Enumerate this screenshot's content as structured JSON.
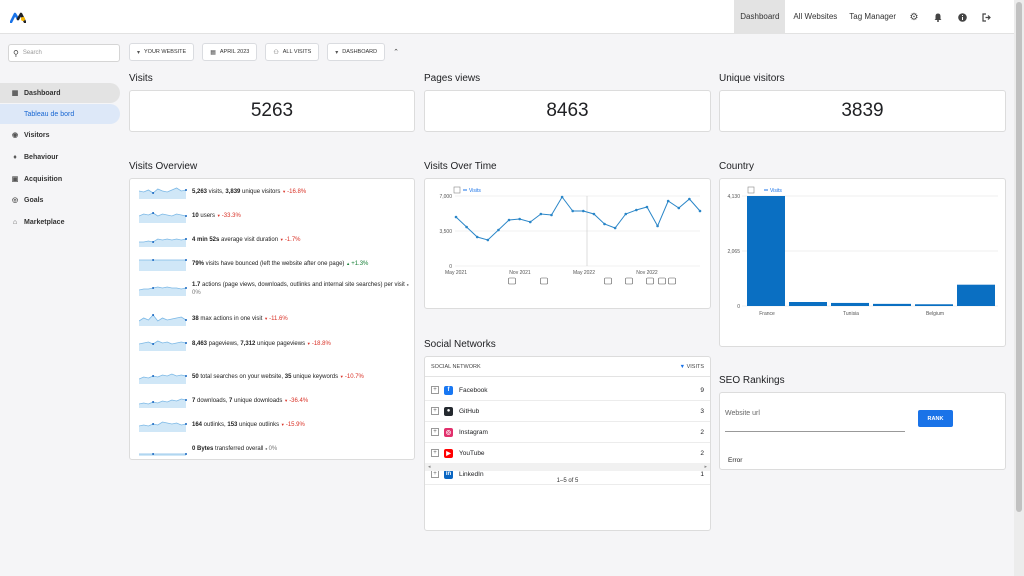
{
  "topbar": {
    "nav": [
      "Dashboard",
      "All Websites",
      "Tag Manager"
    ],
    "icons": [
      "gear-icon",
      "bell-icon",
      "info-icon",
      "logout-icon"
    ]
  },
  "sidebar": {
    "search_placeholder": "Search",
    "items": [
      {
        "label": "Dashboard",
        "icon": "grid-icon"
      },
      {
        "label": "Tableau de bord",
        "icon": ""
      },
      {
        "label": "Visitors",
        "icon": "eye-icon"
      },
      {
        "label": "Behaviour",
        "icon": "bell-icon"
      },
      {
        "label": "Acquisition",
        "icon": "window-icon"
      },
      {
        "label": "Goals",
        "icon": "target-icon"
      },
      {
        "label": "Marketplace",
        "icon": "store-icon"
      }
    ]
  },
  "filters": [
    "YOUR WEBSITE",
    "APRIL 2023",
    "ALL VISITS",
    "DASHBOARD"
  ],
  "kpis": [
    {
      "title": "Visits",
      "value": "5263"
    },
    {
      "title": "Pages views",
      "value": "8463"
    },
    {
      "title": "Unique visitors",
      "value": "3839"
    }
  ],
  "overview": {
    "title": "Visits Overview",
    "rows": [
      {
        "segments": [
          {
            "t": "5,263",
            "b": true
          },
          {
            "t": " visits, "
          },
          {
            "t": "3,839",
            "b": true
          },
          {
            "t": " unique visitors "
          }
        ],
        "delta": "-16.8%",
        "dir": "dn"
      },
      {
        "segments": [
          {
            "t": "10",
            "b": true
          },
          {
            "t": " users "
          }
        ],
        "delta": "-33.3%",
        "dir": "dn"
      },
      {
        "segments": [
          {
            "t": "4 min 52s",
            "b": true
          },
          {
            "t": " average visit duration "
          }
        ],
        "delta": "-1.7%",
        "dir": "dn"
      },
      {
        "segments": [
          {
            "t": "79%",
            "b": true
          },
          {
            "t": " visits have bounced (left the website after one page) "
          }
        ],
        "delta": "+1.3%",
        "dir": "up"
      },
      {
        "segments": [
          {
            "t": "1.7",
            "b": true
          },
          {
            "t": " actions (page views, downloads, outlinks and internal site searches) per visit "
          }
        ],
        "delta": "0%",
        "dir": "neu"
      },
      {
        "segments": [
          {
            "t": "38",
            "b": true
          },
          {
            "t": " max actions in one visit "
          }
        ],
        "delta": "-11.6%",
        "dir": "dn"
      },
      {
        "segments": [
          {
            "t": "8,463",
            "b": true
          },
          {
            "t": " pageviews, "
          },
          {
            "t": "7,312",
            "b": true
          },
          {
            "t": " unique pageviews "
          }
        ],
        "delta": "-18.8%",
        "dir": "dn"
      },
      {
        "segments": [
          {
            "t": "50",
            "b": true
          },
          {
            "t": " total searches on your website, "
          },
          {
            "t": "35",
            "b": true
          },
          {
            "t": " unique keywords "
          }
        ],
        "delta": "-10.7%",
        "dir": "dn"
      },
      {
        "segments": [
          {
            "t": "7",
            "b": true
          },
          {
            "t": " downloads, "
          },
          {
            "t": "7",
            "b": true
          },
          {
            "t": " unique downloads "
          }
        ],
        "delta": "-36.4%",
        "dir": "dn"
      },
      {
        "segments": [
          {
            "t": "164",
            "b": true
          },
          {
            "t": " outlinks, "
          },
          {
            "t": "153",
            "b": true
          },
          {
            "t": " unique outlinks "
          }
        ],
        "delta": "-15.9%",
        "dir": "dn"
      },
      {
        "segments": [
          {
            "t": "0 Bytes",
            "b": true
          },
          {
            "t": " transferred overall "
          }
        ],
        "delta": "0%",
        "dir": "neu"
      }
    ]
  },
  "visits_over_time": {
    "title": "Visits Over Time"
  },
  "country": {
    "title": "Country"
  },
  "social": {
    "title": "Social Networks",
    "col_name": "SOCIAL NETWORK",
    "col_value": "VISITS",
    "rows": [
      {
        "name": "Facebook",
        "count": "9",
        "color": "#1877f2",
        "glyph": "f",
        "icon": "facebook-icon"
      },
      {
        "name": "GitHub",
        "count": "3",
        "color": "#24292f",
        "glyph": "●",
        "icon": "github-icon"
      },
      {
        "name": "Instagram",
        "count": "2",
        "color": "#e1306c",
        "glyph": "◎",
        "icon": "instagram-icon"
      },
      {
        "name": "YouTube",
        "count": "2",
        "color": "#ff0000",
        "glyph": "▶",
        "icon": "youtube-icon"
      },
      {
        "name": "LinkedIn",
        "count": "1",
        "color": "#0a66c2",
        "glyph": "in",
        "icon": "linkedin-icon"
      }
    ],
    "pager": "1–5 of 5"
  },
  "seo": {
    "title": "SEO Rankings",
    "placeholder": "Website url",
    "button": "RANK",
    "error": "Error"
  },
  "chart_data": [
    {
      "type": "line",
      "series": [
        {
          "name": "Visits",
          "values": [
            4900,
            3900,
            2900,
            2600,
            3600,
            4600,
            4700,
            4400,
            5200,
            5100,
            6900,
            5500,
            5500,
            5200,
            4200,
            3800,
            5200,
            5600,
            5900,
            4000,
            6500,
            5800,
            6700,
            5500
          ]
        }
      ],
      "ylim": [
        0,
        7000
      ],
      "yticks": [
        "0",
        "3,500",
        "7,000"
      ],
      "xticks": [
        "May 2021",
        "Nov 2021",
        "May 2022",
        "Nov 2022"
      ],
      "grid": true,
      "legend": "top-left"
    },
    {
      "type": "bar",
      "series": [
        {
          "name": "Visits",
          "values": [
            4130,
            150,
            115,
            80,
            65,
            800
          ]
        }
      ],
      "ylim": [
        0,
        4130
      ],
      "yticks": [
        "0",
        "2,065",
        "4,130"
      ],
      "xticks": [
        "France",
        "Tunisia",
        "Belgium"
      ],
      "grid": true,
      "legend": "top-left"
    }
  ],
  "colors": {
    "accent": "#1a73e8",
    "bar": "#0a6fc2",
    "line": "#2a86c8",
    "spark": "#a9d4f0",
    "down": "#d93025",
    "up": "#188038"
  }
}
